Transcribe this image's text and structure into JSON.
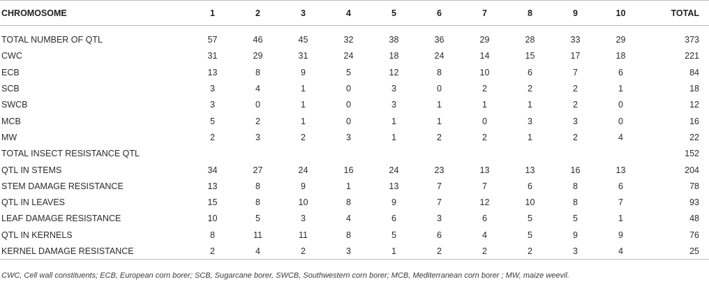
{
  "table": {
    "header": {
      "first": "CHROMOSOME",
      "columns": [
        "1",
        "2",
        "3",
        "4",
        "5",
        "6",
        "7",
        "8",
        "9",
        "10"
      ],
      "total": "TOTAL"
    },
    "rows": [
      {
        "label": "TOTAL NUMBER OF QTL",
        "values": [
          "57",
          "46",
          "45",
          "32",
          "38",
          "36",
          "29",
          "28",
          "33",
          "29"
        ],
        "total": "373"
      },
      {
        "label": "CWC",
        "values": [
          "31",
          "29",
          "31",
          "24",
          "18",
          "24",
          "14",
          "15",
          "17",
          "18"
        ],
        "total": "221"
      },
      {
        "label": "ECB",
        "values": [
          "13",
          "8",
          "9",
          "5",
          "12",
          "8",
          "10",
          "6",
          "7",
          "6"
        ],
        "total": "84"
      },
      {
        "label": "SCB",
        "values": [
          "3",
          "4",
          "1",
          "0",
          "3",
          "0",
          "2",
          "2",
          "2",
          "1"
        ],
        "total": "18"
      },
      {
        "label": "SWCB",
        "values": [
          "3",
          "0",
          "1",
          "0",
          "3",
          "1",
          "1",
          "1",
          "2",
          "0"
        ],
        "total": "12"
      },
      {
        "label": "MCB",
        "values": [
          "5",
          "2",
          "1",
          "0",
          "1",
          "1",
          "0",
          "3",
          "3",
          "0"
        ],
        "total": "16"
      },
      {
        "label": "MW",
        "values": [
          "2",
          "3",
          "2",
          "3",
          "1",
          "2",
          "2",
          "1",
          "2",
          "4"
        ],
        "total": "22"
      },
      {
        "label": "TOTAL INSECT RESISTANCE QTL",
        "values": [
          "",
          "",
          "",
          "",
          "",
          "",
          "",
          "",
          "",
          ""
        ],
        "total": "152"
      },
      {
        "label": "QTL IN STEMS",
        "values": [
          "34",
          "27",
          "24",
          "16",
          "24",
          "23",
          "13",
          "13",
          "16",
          "13"
        ],
        "total": "204"
      },
      {
        "label": "STEM DAMAGE RESISTANCE",
        "values": [
          "13",
          "8",
          "9",
          "1",
          "13",
          "7",
          "7",
          "6",
          "8",
          "6"
        ],
        "total": "78"
      },
      {
        "label": "QTL IN LEAVES",
        "values": [
          "15",
          "8",
          "10",
          "8",
          "9",
          "7",
          "12",
          "10",
          "8",
          "7"
        ],
        "total": "93"
      },
      {
        "label": "LEAF DAMAGE RESISTANCE",
        "values": [
          "10",
          "5",
          "3",
          "4",
          "6",
          "3",
          "6",
          "5",
          "5",
          "1"
        ],
        "total": "48"
      },
      {
        "label": "QTL IN KERNELS",
        "values": [
          "8",
          "11",
          "11",
          "8",
          "5",
          "6",
          "4",
          "5",
          "9",
          "9"
        ],
        "total": "76"
      },
      {
        "label": "KERNEL DAMAGE RESISTANCE",
        "values": [
          "2",
          "4",
          "2",
          "3",
          "1",
          "2",
          "2",
          "2",
          "3",
          "4"
        ],
        "total": "25"
      }
    ]
  },
  "footnote": "CWC, Cell wall constituents; ECB, European corn borer; SCB, Sugarcane borer, SWCB, Southwestern corn borer; MCB, Mediterranean corn borer ; MW, maize weevil."
}
